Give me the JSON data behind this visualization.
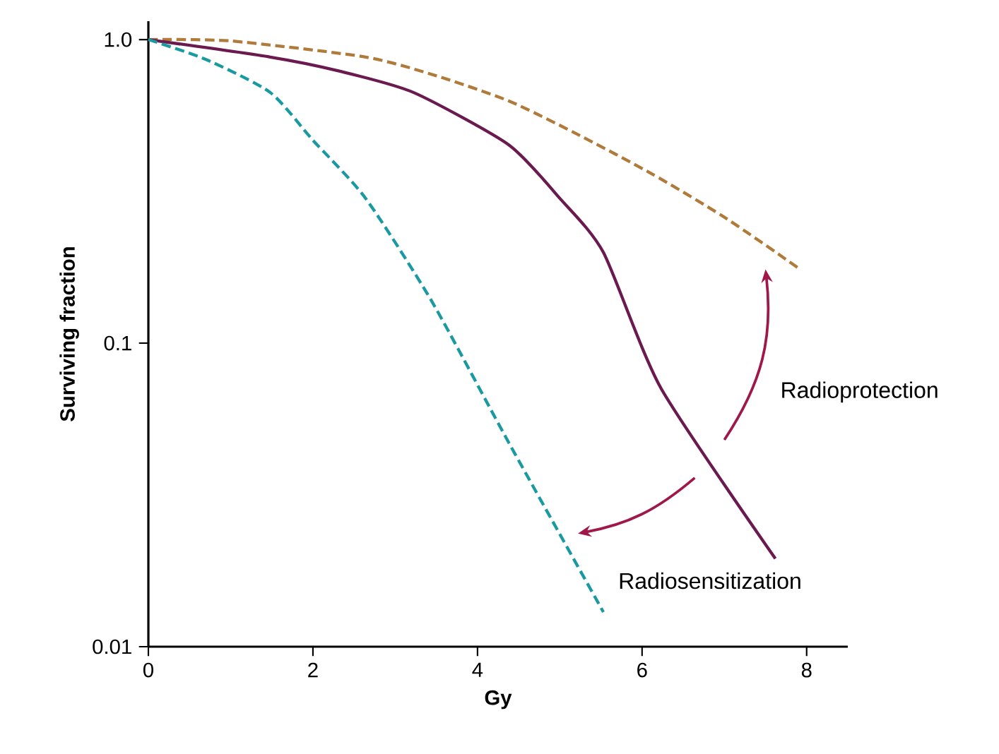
{
  "chart_data": {
    "type": "line",
    "xlabel": "Gy",
    "ylabel": "Surviving fraction",
    "xlim": [
      0,
      8.5
    ],
    "xticks": [
      0,
      2,
      4,
      6,
      8
    ],
    "ylim": [
      0.01,
      1.15
    ],
    "yticks": [
      {
        "value": 1,
        "label": "1.0"
      },
      0.1,
      0.01
    ],
    "log": "y",
    "marker": "none",
    "series": [
      {
        "color": "#b07a3a",
        "line_style": "dashed",
        "x": [
          0,
          1,
          2.64,
          3.5,
          4.38,
          5.2,
          6.12,
          7,
          7.91
        ],
        "values": [
          1,
          0.99,
          0.876,
          0.76,
          0.628,
          0.49,
          0.361,
          0.26,
          0.176
        ]
      },
      {
        "color": "#6b1a4f",
        "line_style": "solid",
        "x": [
          0,
          1.48,
          2.3,
          3.22,
          4.38,
          5,
          5.53,
          6.23,
          7.62
        ],
        "values": [
          1,
          0.876,
          0.79,
          0.67,
          0.45,
          0.3,
          0.199,
          0.071,
          0.0195
        ]
      },
      {
        "color": "#1a9aa0",
        "line_style": "dashed",
        "x": [
          0,
          0.7,
          1.48,
          2,
          2.64,
          3.44,
          4.38,
          5.53
        ],
        "values": [
          1,
          0.86,
          0.67,
          0.466,
          0.3,
          0.138,
          0.047,
          0.013
        ]
      }
    ],
    "annotations": [
      "Radioprotection",
      "Radiosensitization"
    ]
  }
}
